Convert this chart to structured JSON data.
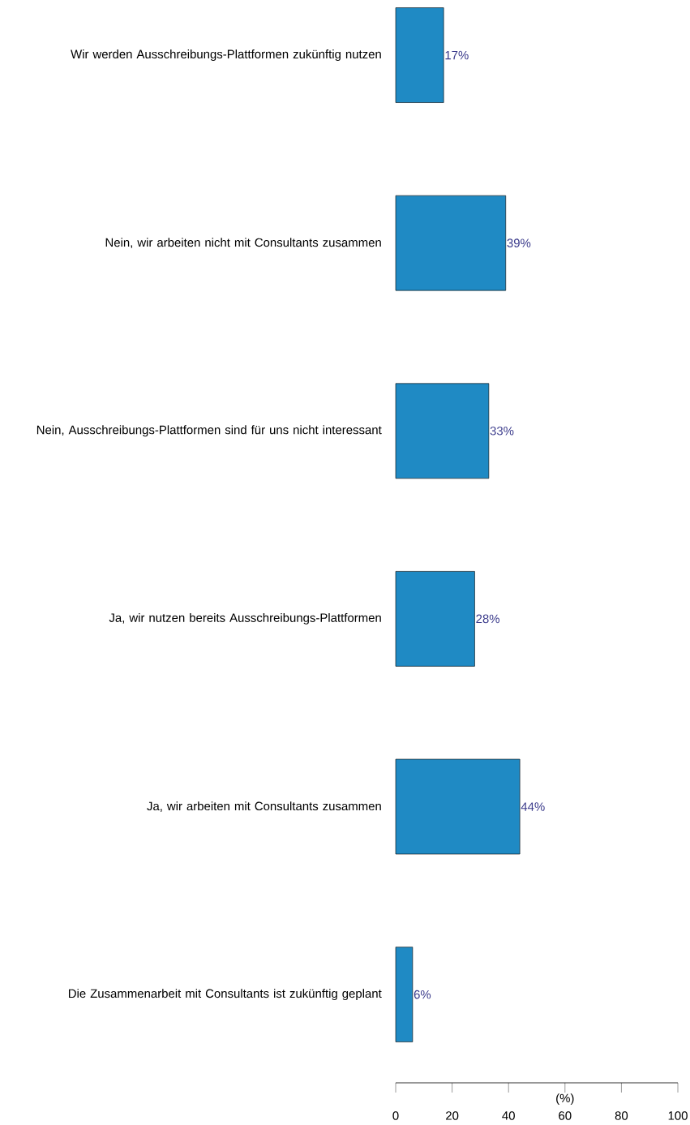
{
  "chart_data": {
    "type": "bar",
    "orientation": "horizontal",
    "xlabel": "(%)",
    "categories": [
      "Wir werden Ausschreibungs-Plattformen zukünftig nutzen",
      "Nein, wir arbeiten nicht mit Consultants zusammen",
      "Nein, Ausschreibungs-Plattformen sind für uns nicht interessant",
      "Ja, wir nutzen bereits Ausschreibungs-Plattformen",
      "Ja, wir arbeiten mit Consultants zusammen",
      "Die Zusammenarbeit mit Consultants ist zukünftig geplant"
    ],
    "values": [
      17,
      39,
      33,
      28,
      44,
      6
    ],
    "value_labels": [
      "17%",
      "39%",
      "33%",
      "28%",
      "44%",
      "6%"
    ],
    "color": "#1f8ac4",
    "xlim": [
      0,
      100
    ],
    "xticks": [
      0,
      20,
      40,
      60,
      80,
      100
    ]
  }
}
